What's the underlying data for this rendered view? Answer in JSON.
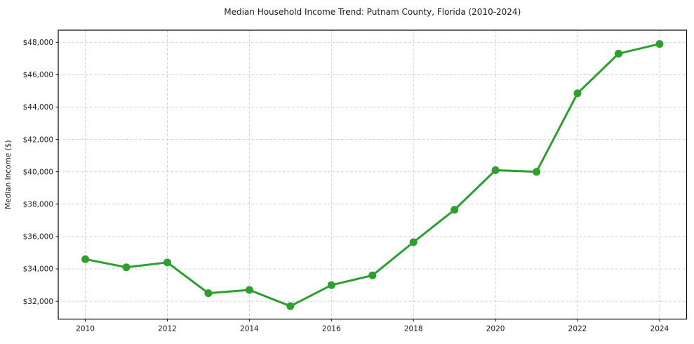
{
  "chart_data": {
    "type": "line",
    "title": "Median Household Income Trend: Putnam County, Florida (2010-2024)",
    "xlabel": "",
    "ylabel": "Median Income ($)",
    "x": [
      2010,
      2011,
      2012,
      2013,
      2014,
      2015,
      2016,
      2017,
      2018,
      2019,
      2020,
      2021,
      2022,
      2023,
      2024
    ],
    "values": [
      34600,
      34100,
      34400,
      32500,
      32700,
      31700,
      33000,
      33600,
      35650,
      37650,
      40100,
      40000,
      44850,
      47300,
      47900
    ],
    "x_ticks": {
      "values": [
        2010,
        2012,
        2014,
        2016,
        2018,
        2020,
        2022,
        2024
      ],
      "labels": [
        "2010",
        "2012",
        "2014",
        "2016",
        "2018",
        "2020",
        "2022",
        "2024"
      ]
    },
    "y_ticks": {
      "values": [
        32000,
        34000,
        36000,
        38000,
        40000,
        42000,
        44000,
        46000,
        48000
      ],
      "labels": [
        "$32,000",
        "$34,000",
        "$36,000",
        "$38,000",
        "$40,000",
        "$42,000",
        "$44,000",
        "$46,000",
        "$48,000"
      ]
    },
    "xlim": [
      2009.34,
      2024.66
    ],
    "ylim": [
      30900,
      48750
    ],
    "grid": true,
    "grid_style": "dashed",
    "legend": false,
    "marker": "circle",
    "colors": {
      "line": "#2ca02c",
      "marker": "#2ca02c",
      "grid": "#cccccc",
      "axis": "#000000",
      "text": "#1a1a1a",
      "background": "#ffffff"
    }
  }
}
